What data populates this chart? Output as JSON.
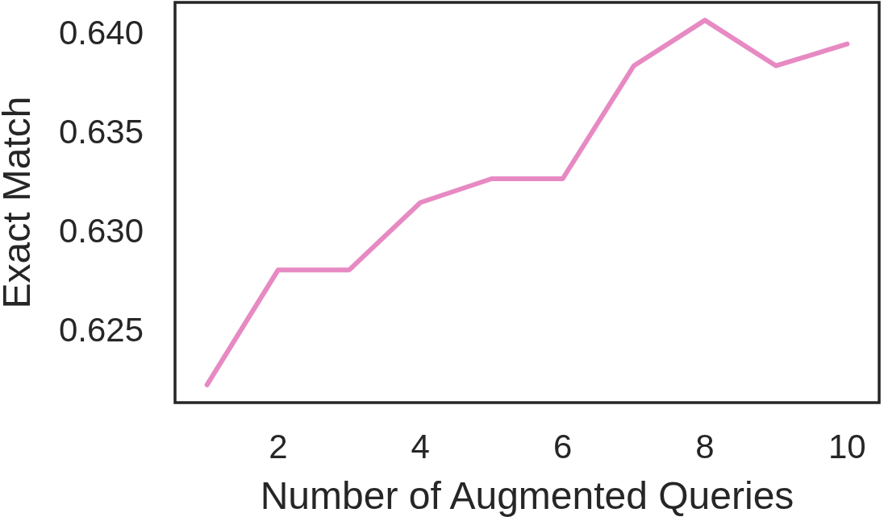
{
  "chart_data": {
    "type": "line",
    "xlabel": "Number of Augmented Queries",
    "ylabel": "Exact Match",
    "x": [
      1,
      2,
      3,
      4,
      5,
      6,
      7,
      8,
      9,
      10
    ],
    "series": [
      {
        "color": "#e78ac3",
        "values": [
          0.6222,
          0.628,
          0.628,
          0.6314,
          0.6326,
          0.6326,
          0.6383,
          0.6406,
          0.6383,
          0.6394
        ]
      }
    ],
    "xlim": [
      0.55,
      10.45
    ],
    "ylim": [
      0.6213,
      0.6415
    ],
    "xticks": [
      2,
      4,
      6,
      8,
      10
    ],
    "yticks": [
      {
        "value": 0.625,
        "label": "0.625"
      },
      {
        "value": 0.63,
        "label": "0.630"
      },
      {
        "value": 0.635,
        "label": "0.635"
      },
      {
        "value": 0.64,
        "label": "0.640"
      }
    ],
    "grid": false,
    "marker": "none",
    "line_style": "solid"
  }
}
